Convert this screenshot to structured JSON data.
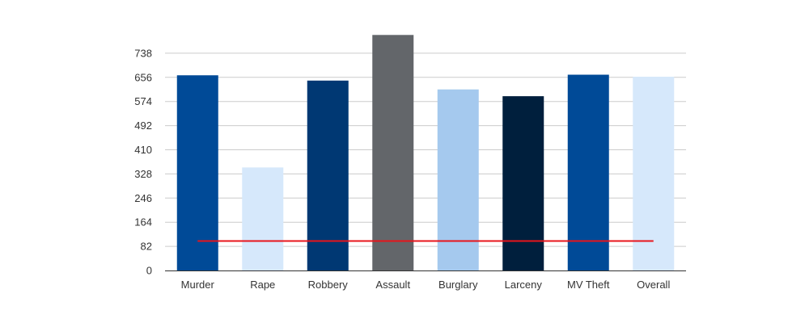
{
  "chart_data": {
    "type": "bar",
    "title": "",
    "xlabel": "",
    "ylabel": "",
    "categories": [
      "Murder",
      "Rape",
      "Robbery",
      "Assault",
      "Burglary",
      "Larceny",
      "MV Theft",
      "Overall"
    ],
    "values": [
      663,
      350,
      645,
      800,
      615,
      592,
      665,
      658
    ],
    "bar_colors": [
      "#004a97",
      "#d6e8fb",
      "#003873",
      "#63666a",
      "#a5c9ee",
      "#001f3d",
      "#004a97",
      "#d6e8fb"
    ],
    "yticks": [
      0,
      82,
      164,
      246,
      328,
      410,
      492,
      574,
      656,
      738
    ],
    "ylim": [
      0,
      820
    ],
    "reference_line": {
      "value": 100,
      "color": "#e8141b"
    },
    "grid": true,
    "legend": "none"
  }
}
